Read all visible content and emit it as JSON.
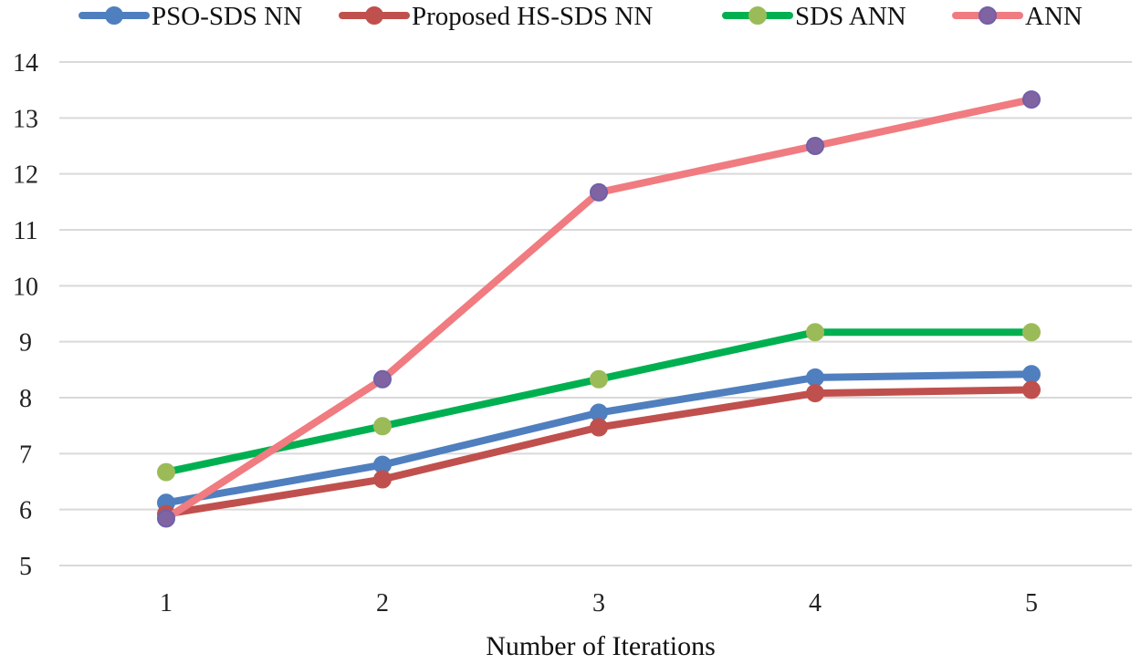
{
  "chart_data": {
    "type": "line",
    "title": "",
    "xlabel": "Number of Iterations",
    "ylabel": "",
    "categories": [
      "1",
      "2",
      "3",
      "4",
      "5"
    ],
    "ylim": [
      5,
      14
    ],
    "yticks": [
      5,
      6,
      7,
      8,
      9,
      10,
      11,
      12,
      13,
      14
    ],
    "grid": true,
    "legend_position": "top",
    "series": [
      {
        "name": "PSO-SDS NN",
        "color": "#4f7fbf",
        "marker_color": "#4f7fbf",
        "marker_stroke": "#4f7fbf",
        "values": [
          6.12,
          6.8,
          7.73,
          8.36,
          8.42
        ]
      },
      {
        "name": "Proposed HS-SDS NN",
        "color": "#c0504d",
        "marker_color": "#c0504d",
        "marker_stroke": "#c0504d",
        "values": [
          5.92,
          6.54,
          7.47,
          8.08,
          8.14
        ]
      },
      {
        "name": "SDS ANN",
        "color": "#00b050",
        "marker_color": "#9bbb59",
        "marker_stroke": "#9bbb59",
        "values": [
          6.67,
          7.49,
          8.33,
          9.17,
          9.17
        ]
      },
      {
        "name": "ANN",
        "color": "#f07b80",
        "marker_color": "#8064a2",
        "marker_stroke": "#7060a8",
        "values": [
          5.84,
          8.33,
          11.67,
          12.5,
          13.33
        ]
      }
    ]
  }
}
